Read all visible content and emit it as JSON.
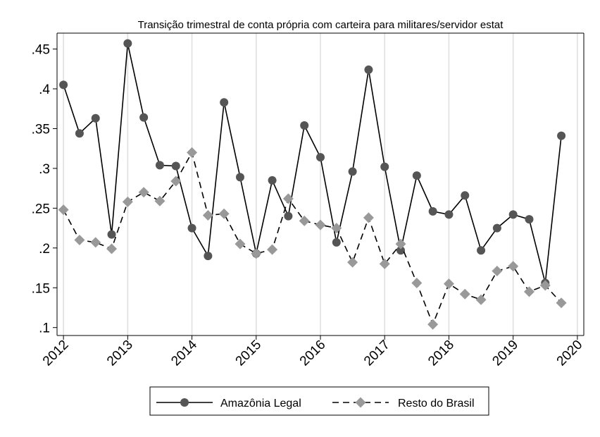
{
  "chart_data": {
    "type": "line",
    "title": "Transição trimestral de conta própria com carteira para militares/servidor estat",
    "xlabel": "",
    "ylabel": "",
    "xlim": [
      2011.9,
      2020.1
    ],
    "ylim": [
      0.09,
      0.47
    ],
    "x_ticks": [
      2012,
      2013,
      2014,
      2015,
      2016,
      2017,
      2018,
      2019,
      2020
    ],
    "x_tick_labels": [
      "2012",
      "2013",
      "2014",
      "2015",
      "2016",
      "2017",
      "2018",
      "2019",
      "2020"
    ],
    "y_ticks": [
      0.1,
      0.15,
      0.2,
      0.25,
      0.3,
      0.35,
      0.4,
      0.45
    ],
    "y_tick_labels": [
      ".1",
      ".15",
      ".2",
      ".25",
      ".3",
      ".35",
      ".4",
      ".45"
    ],
    "grid": "vertical",
    "legend_position": "bottom",
    "x": [
      2012.0,
      2012.25,
      2012.5,
      2012.75,
      2013.0,
      2013.25,
      2013.5,
      2013.75,
      2014.0,
      2014.25,
      2014.5,
      2014.75,
      2015.0,
      2015.25,
      2015.5,
      2015.75,
      2016.0,
      2016.25,
      2016.5,
      2016.75,
      2017.0,
      2017.25,
      2017.5,
      2017.75,
      2018.0,
      2018.25,
      2018.5,
      2018.75,
      2019.0,
      2019.25,
      2019.5,
      2019.75
    ],
    "series": [
      {
        "name": "Amazônia Legal",
        "color": "#555555",
        "line": "solid",
        "marker": "circle",
        "values": [
          0.405,
          0.344,
          0.363,
          0.217,
          0.457,
          0.364,
          0.304,
          0.303,
          0.225,
          0.19,
          0.383,
          0.289,
          0.193,
          0.285,
          0.24,
          0.354,
          0.314,
          0.207,
          0.296,
          0.424,
          0.302,
          0.197,
          0.291,
          0.246,
          0.242,
          0.266,
          0.197,
          0.225,
          0.242,
          0.236,
          0.156,
          0.341
        ]
      },
      {
        "name": "Resto do Brasil",
        "color": "#999999",
        "line": "dashed",
        "marker": "diamond",
        "values": [
          0.248,
          0.21,
          0.207,
          0.199,
          0.258,
          0.27,
          0.259,
          0.284,
          0.32,
          0.241,
          0.243,
          0.205,
          0.193,
          0.198,
          0.262,
          0.234,
          0.229,
          0.225,
          0.182,
          0.238,
          0.18,
          0.205,
          0.156,
          0.104,
          0.155,
          0.142,
          0.135,
          0.171,
          0.177,
          0.145,
          0.153,
          0.131
        ]
      }
    ]
  }
}
